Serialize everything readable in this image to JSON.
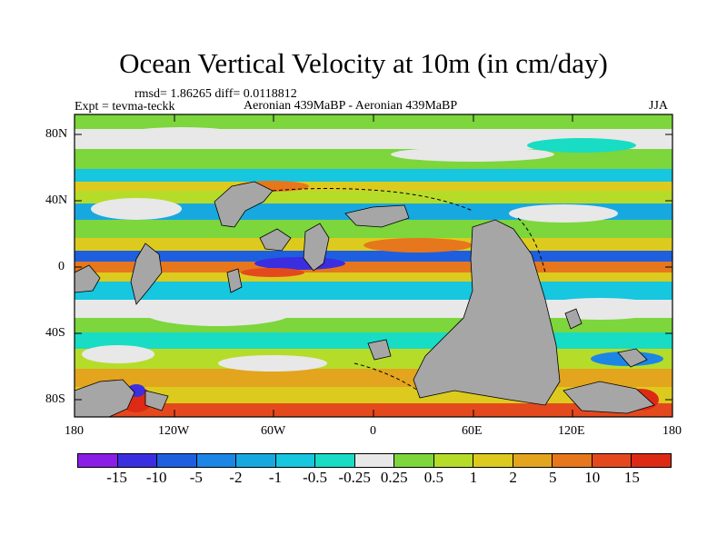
{
  "title": "Ocean Vertical Velocity at 10m (in cm/day)",
  "stats": "rmsd= 1.86265 diff= 0.0118812",
  "experiment": "Expt = tevma-teckk",
  "comparison": "Aeronian 439MaBP - Aeronian 439MaBP",
  "season": "JJA",
  "y_axis_labels": [
    "80N",
    "40N",
    "0",
    "40S",
    "80S"
  ],
  "x_axis_labels": [
    "180",
    "120W",
    "60W",
    "0",
    "60E",
    "120E",
    "180"
  ],
  "colorbar": {
    "labels": [
      "-15",
      "-10",
      "-5",
      "-2",
      "-1",
      "-0.5",
      "-0.25",
      "0.25",
      "0.5",
      "1",
      "2",
      "5",
      "10",
      "15"
    ],
    "colors": [
      "#8a1ee6",
      "#3b2ee0",
      "#1e5fe0",
      "#1b86e6",
      "#18a8e0",
      "#17c6df",
      "#19dcc4",
      "#e8e8e8",
      "#7cd63c",
      "#b6dc2a",
      "#dccb1e",
      "#e3a41e",
      "#e6771c",
      "#e4491e",
      "#dd2a14"
    ]
  }
}
